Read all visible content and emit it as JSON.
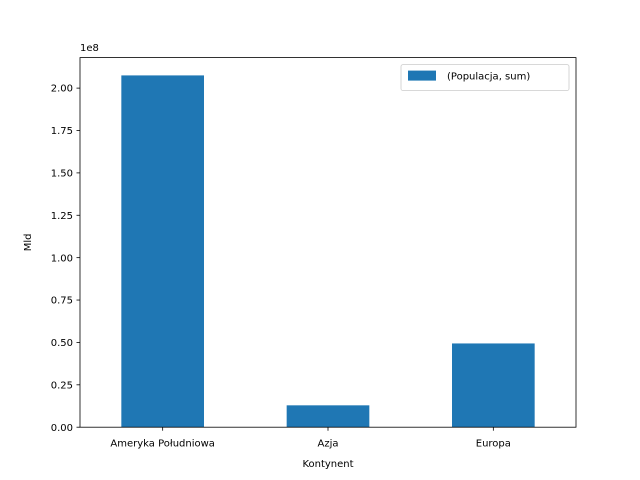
{
  "chart_data": {
    "type": "bar",
    "categories": [
      "Ameryka Południowa",
      "Azja",
      "Europa"
    ],
    "series": [
      {
        "name": "(Populacja, sum)",
        "values": [
          207500000,
          12900000,
          49400000
        ],
        "color": "#1f77b4"
      }
    ],
    "xlabel": "Kontynent",
    "ylabel": "Mld",
    "ylim": [
      0,
      218000000
    ],
    "yticks": [
      0,
      25000000,
      50000000,
      75000000,
      100000000,
      125000000,
      150000000,
      175000000,
      200000000
    ],
    "ytick_labels": [
      "0.00",
      "0.25",
      "0.50",
      "0.75",
      "1.00",
      "1.25",
      "1.50",
      "1.75",
      "2.00"
    ],
    "offset_text": "1e8",
    "legend_position": "top-right",
    "grid": false
  }
}
